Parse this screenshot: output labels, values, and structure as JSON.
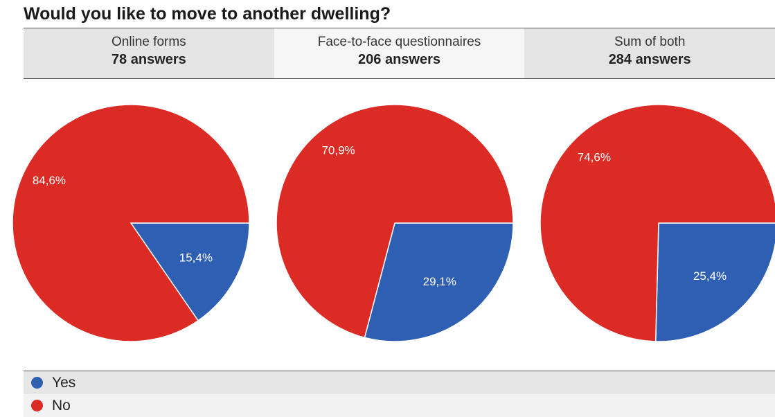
{
  "colors": {
    "yes": "#2f5fb3",
    "no": "#dc2a24"
  },
  "chart_data": {
    "type": "pie",
    "title": "Would you like to move to another dwelling?",
    "legend": [
      {
        "label": "Yes",
        "color": "#2f5fb3"
      },
      {
        "label": "No",
        "color": "#dc2a24"
      }
    ],
    "charts": [
      {
        "header": "Online forms",
        "count_label": "78 answers",
        "slices": [
          {
            "label": "Yes",
            "value": 15.4,
            "text": "15,4%"
          },
          {
            "label": "No",
            "value": 84.6,
            "text": "84,6%"
          }
        ]
      },
      {
        "header": "Face-to-face questionnaires",
        "count_label": "206 answers",
        "slices": [
          {
            "label": "Yes",
            "value": 29.1,
            "text": "29,1%"
          },
          {
            "label": "No",
            "value": 70.9,
            "text": "70,9%"
          }
        ]
      },
      {
        "header": "Sum of both",
        "count_label": "284 answers",
        "slices": [
          {
            "label": "Yes",
            "value": 25.4,
            "text": "25,4%"
          },
          {
            "label": "No",
            "value": 74.6,
            "text": "74,6%"
          }
        ]
      }
    ]
  }
}
